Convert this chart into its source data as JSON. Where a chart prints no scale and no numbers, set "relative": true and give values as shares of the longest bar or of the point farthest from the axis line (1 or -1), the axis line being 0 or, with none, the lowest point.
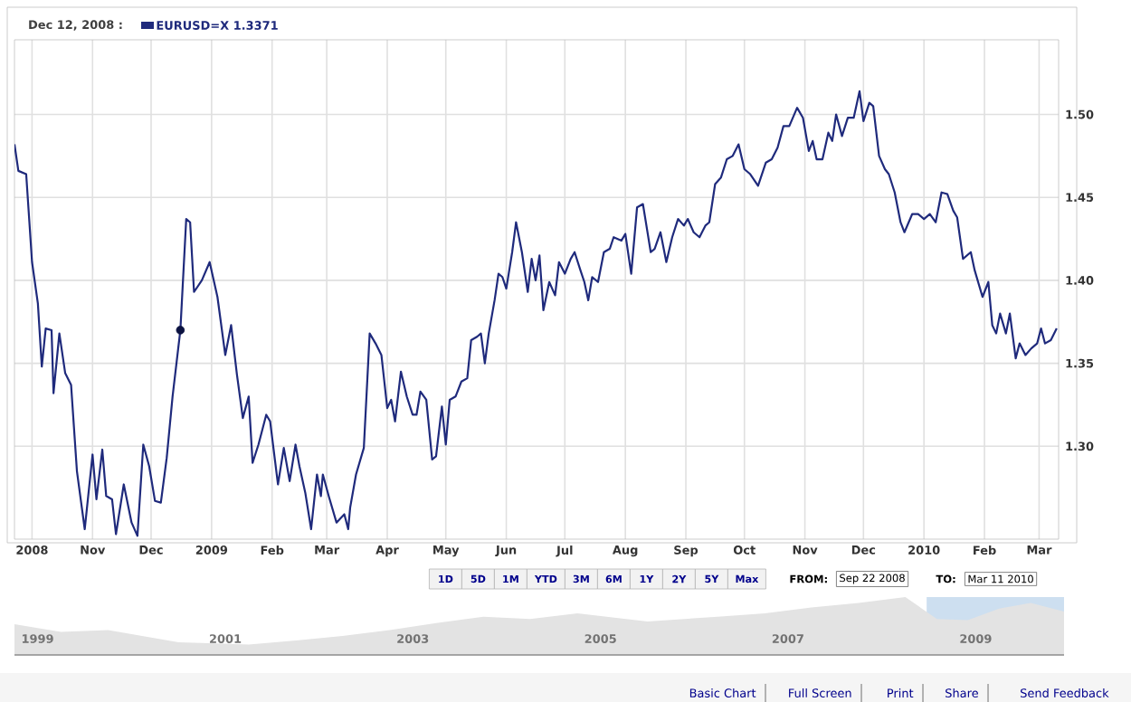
{
  "chart_data": [
    {
      "type": "line",
      "title": "Dec 12, 2008 :",
      "legend": "top left",
      "grid": true,
      "xlim": [
        "2008-09-22",
        "2010-03-11"
      ],
      "ylim": [
        1.244,
        1.545
      ],
      "xticks": [
        {
          "value": "2008-10-01",
          "label": "2008"
        },
        {
          "value": "2008-11-01",
          "label": "Nov"
        },
        {
          "value": "2008-12-01",
          "label": "Dec"
        },
        {
          "value": "2009-01-01",
          "label": "2009"
        },
        {
          "value": "2009-02-01",
          "label": "Feb"
        },
        {
          "value": "2009-03-01",
          "label": "Mar"
        },
        {
          "value": "2009-04-01",
          "label": "Apr"
        },
        {
          "value": "2009-05-01",
          "label": "May"
        },
        {
          "value": "2009-06-01",
          "label": "Jun"
        },
        {
          "value": "2009-07-01",
          "label": "Jul"
        },
        {
          "value": "2009-08-01",
          "label": "Aug"
        },
        {
          "value": "2009-09-01",
          "label": "Sep"
        },
        {
          "value": "2009-10-01",
          "label": "Oct"
        },
        {
          "value": "2009-11-01",
          "label": "Nov"
        },
        {
          "value": "2009-12-01",
          "label": "Dec"
        },
        {
          "value": "2010-01-01",
          "label": "2010"
        },
        {
          "value": "2010-02-01",
          "label": "Feb"
        },
        {
          "value": "2010-03-01",
          "label": "Mar"
        }
      ],
      "yticks": [
        {
          "value": 1.3,
          "label": "1.30"
        },
        {
          "value": 1.35,
          "label": "1.35"
        },
        {
          "value": 1.4,
          "label": "1.40"
        },
        {
          "value": 1.45,
          "label": "1.45"
        },
        {
          "value": 1.5,
          "label": "1.50"
        }
      ],
      "annotations": [
        "1D",
        "5D",
        "1M",
        "YTD",
        "3M",
        "6M",
        "1Y",
        "2Y",
        "5Y",
        "Max",
        "FROM:",
        "Sep 22 2008",
        "TO:",
        "Mar 11 2010",
        "Basic Chart",
        "Full Screen",
        "Print",
        "Share",
        "Send Feedback"
      ],
      "series": [
        {
          "name": "EURUSD=X 1.3371",
          "type": "line",
          "color": "#1f2a7c",
          "x": [
            "2008-09-22",
            "2008-09-24",
            "2008-09-28",
            "2008-10-01",
            "2008-10-04",
            "2008-10-06",
            "2008-10-08",
            "2008-10-11",
            "2008-10-12",
            "2008-10-15",
            "2008-10-18",
            "2008-10-21",
            "2008-10-24",
            "2008-10-28",
            "2008-11-01",
            "2008-11-03",
            "2008-11-06",
            "2008-11-08",
            "2008-11-11",
            "2008-11-13",
            "2008-11-17",
            "2008-11-21",
            "2008-11-24",
            "2008-11-27",
            "2008-11-30",
            "2008-12-03",
            "2008-12-06",
            "2008-12-09",
            "2008-12-12",
            "2008-12-16",
            "2008-12-19",
            "2008-12-21",
            "2008-12-23",
            "2008-12-27",
            "2008-12-31",
            "2009-01-04",
            "2009-01-08",
            "2009-01-11",
            "2009-01-14",
            "2009-01-17",
            "2009-01-20",
            "2009-01-22",
            "2009-01-25",
            "2009-01-29",
            "2009-01-31",
            "2009-02-04",
            "2009-02-07",
            "2009-02-10",
            "2009-02-13",
            "2009-02-15",
            "2009-02-18",
            "2009-02-21",
            "2009-02-24",
            "2009-02-26",
            "2009-02-27",
            "2009-03-02",
            "2009-03-06",
            "2009-03-10",
            "2009-03-12",
            "2009-03-13",
            "2009-03-16",
            "2009-03-20",
            "2009-03-23",
            "2009-03-26",
            "2009-03-29",
            "2009-04-01",
            "2009-04-03",
            "2009-04-05",
            "2009-04-08",
            "2009-04-11",
            "2009-04-14",
            "2009-04-16",
            "2009-04-18",
            "2009-04-21",
            "2009-04-24",
            "2009-04-26",
            "2009-04-29",
            "2009-05-01",
            "2009-05-03",
            "2009-05-06",
            "2009-05-09",
            "2009-05-12",
            "2009-05-14",
            "2009-05-17",
            "2009-05-19",
            "2009-05-21",
            "2009-05-23",
            "2009-05-26",
            "2009-05-28",
            "2009-05-30",
            "2009-06-01",
            "2009-06-04",
            "2009-06-06",
            "2009-06-09",
            "2009-06-12",
            "2009-06-14",
            "2009-06-16",
            "2009-06-18",
            "2009-06-20",
            "2009-06-23",
            "2009-06-26",
            "2009-06-28",
            "2009-07-01",
            "2009-07-04",
            "2009-07-06",
            "2009-07-09",
            "2009-07-11",
            "2009-07-13",
            "2009-07-15",
            "2009-07-18",
            "2009-07-21",
            "2009-07-24",
            "2009-07-26",
            "2009-07-30",
            "2009-08-01",
            "2009-08-04",
            "2009-08-07",
            "2009-08-10",
            "2009-08-14",
            "2009-08-16",
            "2009-08-19",
            "2009-08-22",
            "2009-08-25",
            "2009-08-28",
            "2009-08-31",
            "2009-09-02",
            "2009-09-05",
            "2009-09-08",
            "2009-09-11",
            "2009-09-13",
            "2009-09-16",
            "2009-09-19",
            "2009-09-22",
            "2009-09-25",
            "2009-09-28",
            "2009-10-01",
            "2009-10-04",
            "2009-10-08",
            "2009-10-12",
            "2009-10-15",
            "2009-10-18",
            "2009-10-21",
            "2009-10-24",
            "2009-10-28",
            "2009-10-31",
            "2009-11-03",
            "2009-11-05",
            "2009-11-07",
            "2009-11-10",
            "2009-11-13",
            "2009-11-15",
            "2009-11-17",
            "2009-11-20",
            "2009-11-23",
            "2009-11-26",
            "2009-11-29",
            "2009-12-01",
            "2009-12-04",
            "2009-12-06",
            "2009-12-09",
            "2009-12-12",
            "2009-12-14",
            "2009-12-17",
            "2009-12-20",
            "2009-12-22",
            "2009-12-26",
            "2009-12-29",
            "2010-01-01",
            "2010-01-04",
            "2010-01-07",
            "2010-01-10",
            "2010-01-13",
            "2010-01-16",
            "2010-01-18",
            "2010-01-21",
            "2010-01-25",
            "2010-01-27",
            "2010-01-31",
            "2010-02-03",
            "2010-02-05",
            "2010-02-07",
            "2010-02-09",
            "2010-02-12",
            "2010-02-14",
            "2010-02-17",
            "2010-02-19",
            "2010-02-22",
            "2010-02-25",
            "2010-02-28",
            "2010-03-02",
            "2010-03-04",
            "2010-03-07",
            "2010-03-10"
          ],
          "values": [
            1.482,
            1.466,
            1.464,
            1.411,
            1.386,
            1.348,
            1.371,
            1.37,
            1.332,
            1.368,
            1.344,
            1.337,
            1.285,
            1.25,
            1.295,
            1.268,
            1.298,
            1.27,
            1.268,
            1.247,
            1.277,
            1.254,
            1.246,
            1.301,
            1.288,
            1.267,
            1.266,
            1.293,
            1.33,
            1.37,
            1.437,
            1.435,
            1.393,
            1.4,
            1.411,
            1.39,
            1.355,
            1.373,
            1.343,
            1.317,
            1.33,
            1.29,
            1.301,
            1.319,
            1.315,
            1.277,
            1.299,
            1.279,
            1.301,
            1.288,
            1.272,
            1.25,
            1.283,
            1.27,
            1.283,
            1.27,
            1.254,
            1.259,
            1.25,
            1.263,
            1.283,
            1.299,
            1.368,
            1.362,
            1.355,
            1.323,
            1.328,
            1.315,
            1.345,
            1.33,
            1.319,
            1.319,
            1.333,
            1.328,
            1.292,
            1.294,
            1.324,
            1.301,
            1.328,
            1.33,
            1.339,
            1.341,
            1.364,
            1.366,
            1.368,
            1.35,
            1.368,
            1.388,
            1.404,
            1.402,
            1.395,
            1.417,
            1.435,
            1.417,
            1.393,
            1.413,
            1.4,
            1.415,
            1.382,
            1.399,
            1.391,
            1.411,
            1.404,
            1.413,
            1.417,
            1.406,
            1.399,
            1.388,
            1.402,
            1.399,
            1.417,
            1.419,
            1.426,
            1.424,
            1.428,
            1.404,
            1.444,
            1.446,
            1.417,
            1.419,
            1.429,
            1.411,
            1.426,
            1.437,
            1.433,
            1.437,
            1.429,
            1.426,
            1.433,
            1.435,
            1.458,
            1.462,
            1.473,
            1.475,
            1.482,
            1.467,
            1.464,
            1.457,
            1.471,
            1.473,
            1.48,
            1.493,
            1.493,
            1.504,
            1.498,
            1.478,
            1.484,
            1.473,
            1.473,
            1.489,
            1.484,
            1.5,
            1.487,
            1.498,
            1.498,
            1.514,
            1.496,
            1.507,
            1.505,
            1.475,
            1.467,
            1.464,
            1.453,
            1.435,
            1.429,
            1.44,
            1.44,
            1.437,
            1.44,
            1.435,
            1.453,
            1.452,
            1.442,
            1.438,
            1.413,
            1.417,
            1.406,
            1.39,
            1.399,
            1.373,
            1.368,
            1.38,
            1.368,
            1.38,
            1.353,
            1.362,
            1.355,
            1.359,
            1.362,
            1.371,
            1.362,
            1.364,
            1.371
          ]
        },
        {
          "type": "scatter",
          "marker": "circle",
          "color": "#0b1240",
          "x": [
            "2008-12-16"
          ],
          "values": [
            1.37
          ]
        }
      ]
    },
    {
      "type": "area",
      "relative": true,
      "color": "#e3e3e3",
      "xlim": [
        "1999-01-01",
        "2010-03-11"
      ],
      "xticks": [
        {
          "value": "1999-04-01",
          "label": "1999"
        },
        {
          "value": "2001-04-01",
          "label": "2001"
        },
        {
          "value": "2003-04-01",
          "label": "2003"
        },
        {
          "value": "2005-04-01",
          "label": "2005"
        },
        {
          "value": "2007-04-01",
          "label": "2007"
        },
        {
          "value": "2009-04-01",
          "label": "2009"
        }
      ],
      "bands": [
        {
          "axis": "x",
          "from": "2008-09-22",
          "to": "2010-03-11",
          "color": "#cddff0"
        }
      ],
      "x": [
        "1999-01-01",
        "1999-07-01",
        "2000-01-01",
        "2000-10-01",
        "2001-07-01",
        "2002-01-01",
        "2002-07-01",
        "2003-01-01",
        "2003-07-01",
        "2004-01-01",
        "2004-07-01",
        "2005-01-01",
        "2005-10-01",
        "2006-07-01",
        "2007-01-01",
        "2007-07-01",
        "2008-01-01",
        "2008-07-01",
        "2008-11-01",
        "2009-03-01",
        "2009-07-01",
        "2009-11-01",
        "2010-03-11"
      ],
      "values": [
        0.53,
        0.4,
        0.43,
        0.22,
        0.18,
        0.25,
        0.33,
        0.43,
        0.55,
        0.66,
        0.62,
        0.72,
        0.58,
        0.66,
        0.72,
        0.82,
        0.9,
        1.0,
        0.62,
        0.6,
        0.8,
        0.9,
        0.75
      ]
    }
  ]
}
